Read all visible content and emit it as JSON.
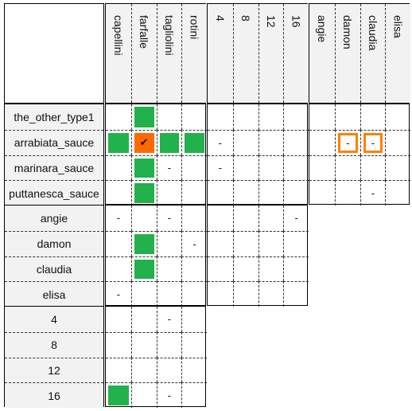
{
  "colors": {
    "green": "#22b14c",
    "orange": "#ff6a00",
    "highlight": "#ff7f00"
  },
  "col_groups": [
    {
      "id": "pasta",
      "labels": [
        "capellini",
        "farfalle",
        "tagliolini",
        "rotini"
      ]
    },
    {
      "id": "number",
      "labels": [
        "4",
        "8",
        "12",
        "16"
      ]
    },
    {
      "id": "person",
      "labels": [
        "angie",
        "damon",
        "claudia",
        "elisa"
      ]
    }
  ],
  "row_groups": [
    {
      "id": "sauce",
      "labels": [
        "the_other_type1",
        "arrabiata_sauce",
        "marinara_sauce",
        "puttanesca_sauce"
      ]
    },
    {
      "id": "person",
      "labels": [
        "angie",
        "damon",
        "claudia",
        "elisa"
      ]
    },
    {
      "id": "number",
      "labels": [
        "4",
        "8",
        "12",
        "16"
      ]
    }
  ],
  "grids": [
    {
      "row_group": 0,
      "col_group": 0,
      "cells": [
        [
          "",
          "G",
          "",
          ""
        ],
        [
          "G",
          "O✔",
          "G",
          "G"
        ],
        [
          "",
          "G",
          "-",
          ""
        ],
        [
          "",
          "G",
          "",
          ""
        ]
      ]
    },
    {
      "row_group": 0,
      "col_group": 1,
      "cells": [
        [
          "",
          "",
          "",
          ""
        ],
        [
          "-",
          "",
          "",
          ""
        ],
        [
          "-",
          "",
          "",
          ""
        ],
        [
          "",
          "",
          "",
          ""
        ]
      ]
    },
    {
      "row_group": 0,
      "col_group": 2,
      "cells": [
        [
          "",
          "",
          "",
          ""
        ],
        [
          "",
          "H-",
          "H-",
          ""
        ],
        [
          "",
          "",
          "",
          ""
        ],
        [
          "",
          "",
          "-",
          ""
        ]
      ]
    },
    {
      "row_group": 1,
      "col_group": 0,
      "cells": [
        [
          "-",
          "",
          "-",
          ""
        ],
        [
          "",
          "G",
          "",
          "-"
        ],
        [
          "",
          "G",
          "",
          ""
        ],
        [
          "-",
          "",
          "",
          ""
        ]
      ]
    },
    {
      "row_group": 1,
      "col_group": 1,
      "cells": [
        [
          "",
          "",
          "",
          "-"
        ],
        [
          "",
          "",
          "",
          ""
        ],
        [
          "",
          "",
          "",
          ""
        ],
        [
          "",
          "",
          "",
          ""
        ]
      ]
    },
    {
      "row_group": 2,
      "col_group": 0,
      "cells": [
        [
          "",
          "",
          "-",
          ""
        ],
        [
          "",
          "",
          "",
          ""
        ],
        [
          "",
          "",
          "",
          ""
        ],
        [
          "G",
          "",
          "-",
          ""
        ]
      ]
    }
  ]
}
